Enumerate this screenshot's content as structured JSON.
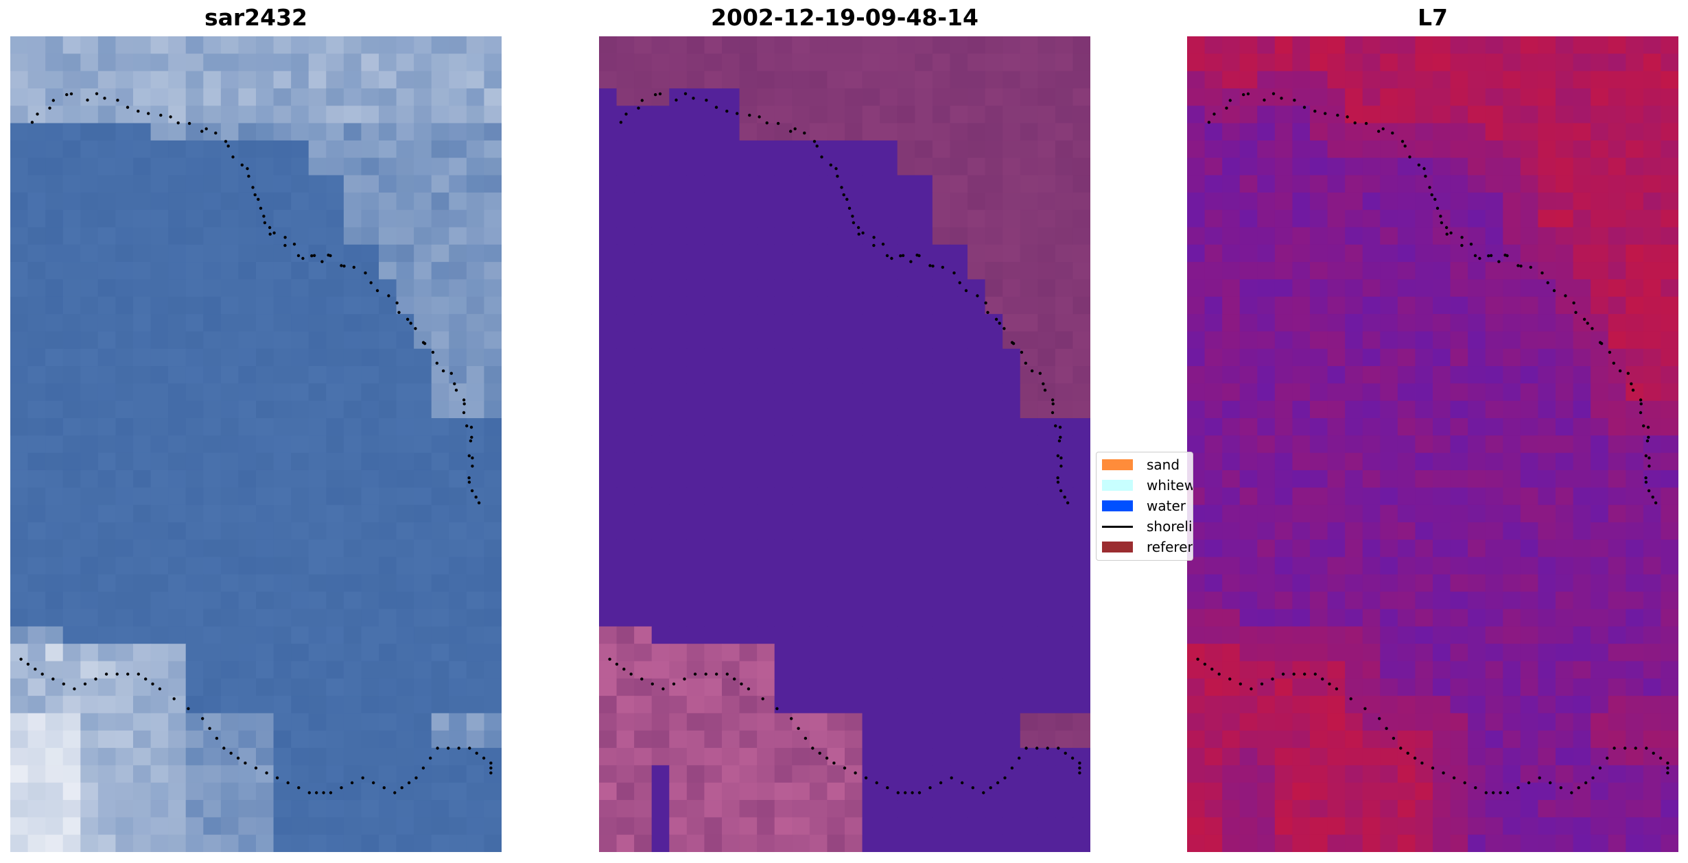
{
  "panels": [
    {
      "title": "sar2432",
      "style": "rgb"
    },
    {
      "title": "2002-12-19-09-48-14",
      "style": "classified"
    },
    {
      "title": "L7",
      "style": "index"
    }
  ],
  "legend": [
    {
      "label": "sand",
      "color": "#ff8c3a",
      "kind": "patch"
    },
    {
      "label": "whitewater",
      "color": "#c8ffff",
      "kind": "patch"
    },
    {
      "label": "water",
      "color": "#0050ff",
      "kind": "patch"
    },
    {
      "label": "shoreline",
      "color": "#000000",
      "kind": "line"
    },
    {
      "label": "reference",
      "color": "#9b2d30",
      "kind": "patch"
    }
  ],
  "colors": {
    "water_class": "#54229a",
    "land_class": "#7e3573",
    "rgb_water": "#4a72ad",
    "rgb_foam": "#e8ecf4",
    "index_water": "#6a1aa8",
    "index_land": "#c0174a",
    "shoreline_dots": "#000000"
  }
}
